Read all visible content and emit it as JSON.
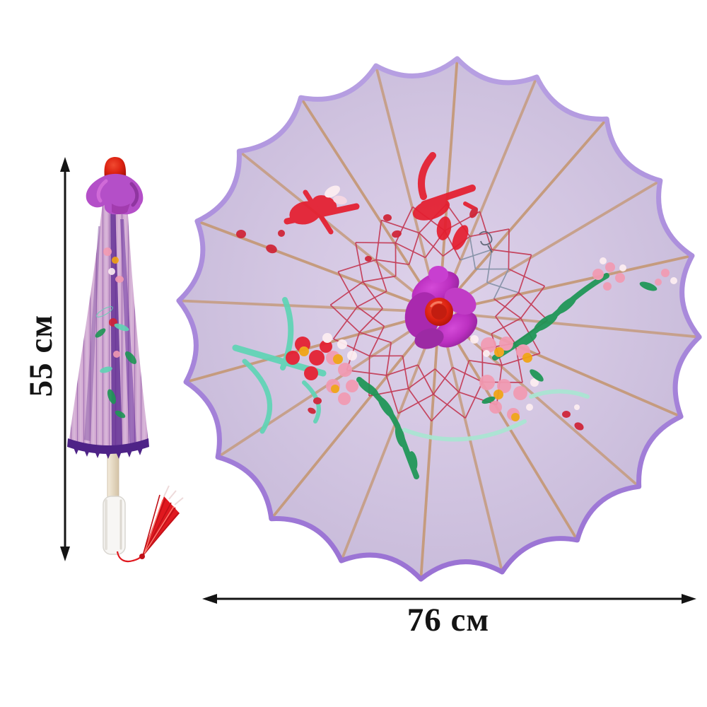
{
  "annotations": {
    "height_label": "55 см",
    "width_label": "76 см"
  },
  "parasol": {
    "rib_count": 20,
    "views": {
      "closed": "closed parasol with red tip, orchid silk wrap, white handle, red tassel",
      "open": "open parasol top view with lilac canopy and hand-painted plum blossoms"
    }
  },
  "colors": {
    "bg": "#ffffff",
    "arrow": "#141414",
    "canopy-light": "#ded2ea",
    "canopy-mid": "#d3c6e2",
    "canopy-edge": "#c8bbda",
    "trim-light": "#b7a0e2",
    "trim-dark": "#9a72d4",
    "rib": "#c59b7e",
    "lace": "#c43e59",
    "lace-alt": "#8793a8",
    "hub-magenta": "#bb2fc0",
    "cap-red": "#dd2312",
    "paint-red": "#e51f30",
    "paint-deepred": "#cf2335",
    "paint-pink": "#f29ab2",
    "paint-white": "#fdeef2",
    "paint-yellow": "#f2a413",
    "paint-teal": "#5fd4b5",
    "paint-mint": "#a9e6d2",
    "paint-green": "#1d9655",
    "body-lilac": "#cfa6cf",
    "body-dark": "#5e2b92",
    "edge-band": "#4e2387",
    "shaft": "#ece1cb",
    "handle": "#f7f6f4",
    "tassel": "#e0181f"
  }
}
